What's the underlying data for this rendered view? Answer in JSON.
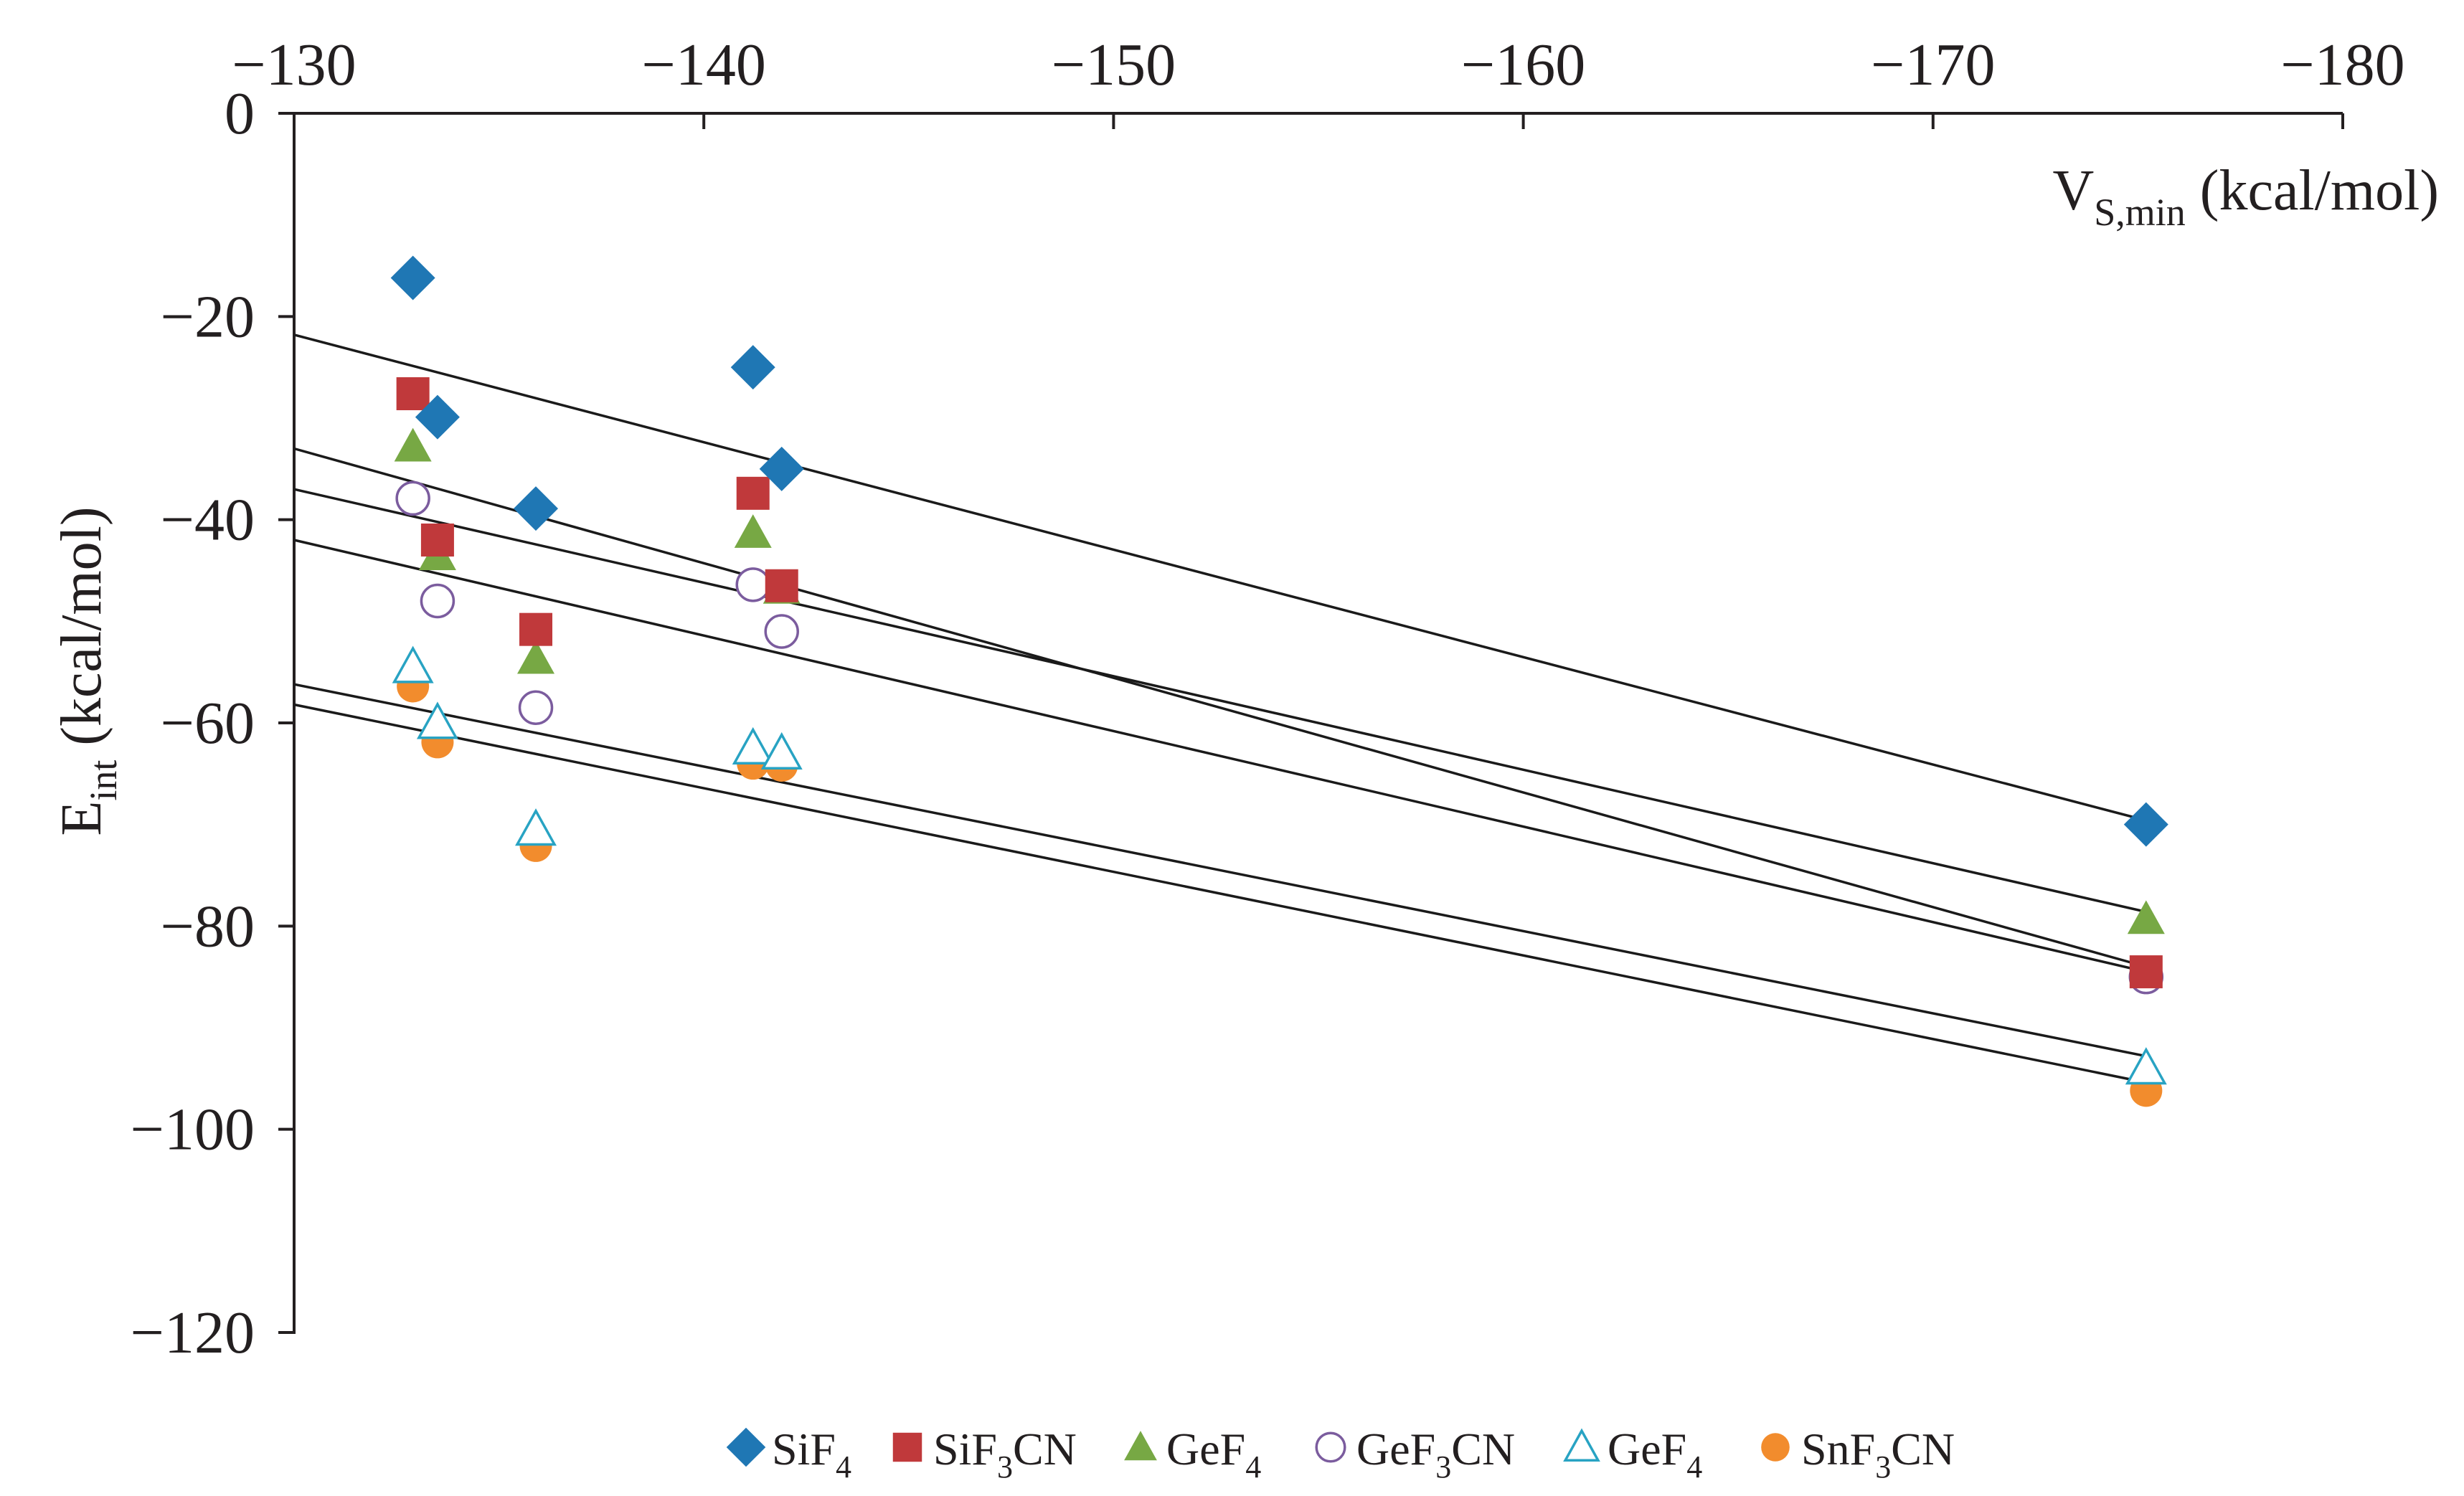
{
  "chart_data": {
    "type": "scatter",
    "title": "",
    "xlabel": {
      "main": "V",
      "subscript": "S,min",
      "unit": " (kcal/mol)"
    },
    "ylabel": {
      "main": "E",
      "subscript": "int",
      "unit": " (kcal/mol)"
    },
    "xlim": [
      -130,
      -180
    ],
    "ylim": [
      -120,
      0
    ],
    "x_axis_position": "top",
    "x_ticks": [
      -130,
      -140,
      -150,
      -160,
      -170,
      -180
    ],
    "x_tick_labels": [
      "−130",
      "−140",
      "−150",
      "−160",
      "−170",
      "−180"
    ],
    "y_ticks": [
      0,
      -20,
      -40,
      -60,
      -80,
      -100,
      -120
    ],
    "y_tick_labels": [
      "0",
      "−20",
      "−40",
      "−60",
      "−80",
      "−100",
      "−120"
    ],
    "grid": false,
    "legend_position": "bottom-center",
    "series": [
      {
        "name": "SiF4",
        "legend_main": "SiF",
        "legend_sub": "4",
        "legend_tail": "",
        "marker": "diamond",
        "filled": true,
        "color": "#1f77b4",
        "x": [
          -132.9,
          -133.5,
          -135.9,
          -141.2,
          -141.9,
          -175.2
        ],
        "y": [
          -16.2,
          -29.9,
          -38.9,
          -25.0,
          -35.0,
          -70.0
        ],
        "fit": {
          "x": [
            -130,
            -175.2
          ],
          "y": [
            -21.8,
            -69.6
          ]
        }
      },
      {
        "name": "SiF3CN",
        "legend_main": "SiF",
        "legend_sub": "3",
        "legend_tail": "CN",
        "marker": "square",
        "filled": true,
        "color": "#c0393b",
        "x": [
          -132.9,
          -133.5,
          -135.9,
          -141.2,
          -141.9,
          -175.2
        ],
        "y": [
          -27.6,
          -42.0,
          -50.8,
          -37.4,
          -46.5,
          -84.5
        ],
        "fit": {
          "x": [
            -130,
            -175.2
          ],
          "y": [
            -33.0,
            -84.0
          ]
        }
      },
      {
        "name": "GeF4",
        "legend_main": "GeF",
        "legend_sub": "4",
        "legend_tail": "",
        "marker": "triangle",
        "filled": true,
        "color": "#77a844",
        "x": [
          -132.9,
          -133.5,
          -135.9,
          -141.2,
          -141.9,
          -175.2
        ],
        "y": [
          -32.8,
          -43.5,
          -53.7,
          -41.3,
          -46.8,
          -79.3
        ],
        "fit": {
          "x": [
            -130,
            -175.2
          ],
          "y": [
            -37.0,
            -78.6
          ]
        }
      },
      {
        "name": "GeF3CN",
        "legend_main": "GeF",
        "legend_sub": "3",
        "legend_tail": "CN",
        "marker": "circle",
        "filled": false,
        "color": "#7b5c9e",
        "x": [
          -132.9,
          -133.5,
          -135.9,
          -141.2,
          -141.9,
          -175.2
        ],
        "y": [
          -37.9,
          -48.0,
          -58.5,
          -46.4,
          -51.0,
          -85.0
        ],
        "fit": {
          "x": [
            -130,
            -175.2
          ],
          "y": [
            -42.0,
            -84.5
          ]
        }
      },
      {
        "name": "GeF4",
        "legend_main": "GeF",
        "legend_sub": "4",
        "legend_tail": "",
        "marker": "triangle",
        "filled": false,
        "color": "#28a3c3",
        "x": [
          -132.9,
          -133.5,
          -135.9,
          -141.2,
          -141.9,
          -175.2
        ],
        "y": [
          -54.5,
          -60.0,
          -70.5,
          -62.5,
          -63.0,
          -94.0
        ],
        "fit": {
          "x": [
            -130,
            -175.2
          ],
          "y": [
            -56.2,
            -92.8
          ]
        }
      },
      {
        "name": "SnF3CN",
        "legend_main": "SnF",
        "legend_sub": "3",
        "legend_tail": "CN",
        "marker": "circle",
        "filled": true,
        "color": "#f28c2d",
        "x": [
          -132.9,
          -133.5,
          -135.9,
          -141.2,
          -141.9,
          -175.2
        ],
        "y": [
          -56.4,
          -61.9,
          -72.1,
          -64.0,
          -64.2,
          -96.2
        ],
        "fit": {
          "x": [
            -130,
            -175.2
          ],
          "y": [
            -58.2,
            -95.4
          ]
        }
      }
    ]
  }
}
